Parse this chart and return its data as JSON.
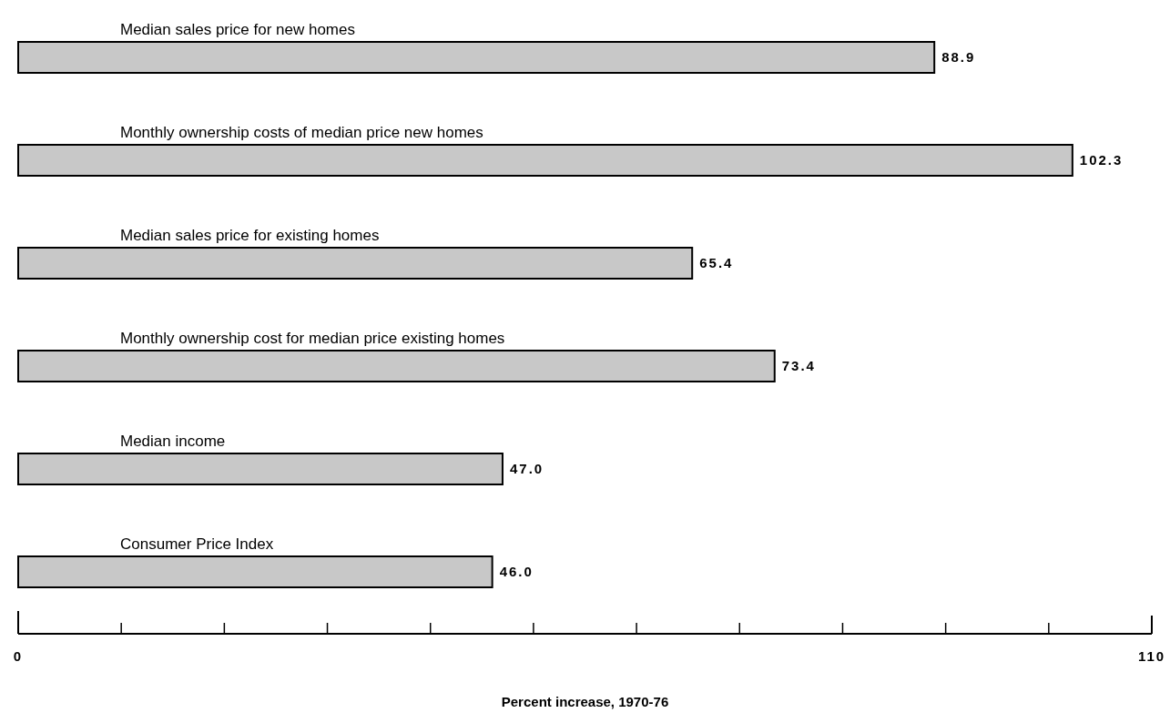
{
  "chart_data": {
    "type": "bar",
    "orientation": "horizontal",
    "xlabel": "Percent increase, 1970-76",
    "categories": [
      "Median sales price for new homes",
      "Monthly ownership costs of median price new homes",
      "Median sales price for existing homes",
      "Monthly ownership cost for median price existing homes",
      "Median income",
      "Consumer Price Index"
    ],
    "values": [
      88.9,
      102.3,
      65.4,
      73.4,
      47.0,
      46.0
    ],
    "color": "#c8c8c8",
    "value_labels": [
      "88.9",
      "102.3",
      "65.4",
      "73.4",
      "47.0",
      "46.0"
    ],
    "xlim": [
      0,
      110
    ],
    "xticks": [
      0,
      {
        "value": 10,
        "label": null
      },
      {
        "value": 20,
        "label": null
      },
      {
        "value": 30,
        "label": null
      },
      {
        "value": 40,
        "label": null
      },
      {
        "value": 50,
        "label": null
      },
      {
        "value": 60,
        "label": null
      },
      {
        "value": 70,
        "label": null
      },
      {
        "value": 80,
        "label": null
      },
      {
        "value": 90,
        "label": null
      },
      {
        "value": 100,
        "label": null
      },
      110
    ],
    "grid": false
  }
}
